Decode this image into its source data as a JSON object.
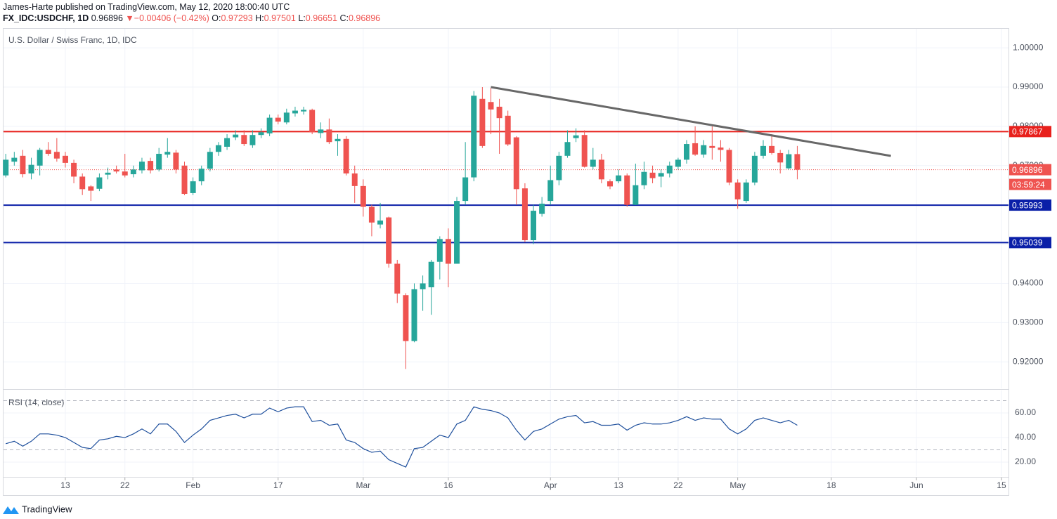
{
  "header": {
    "author_line": "James-Harte published on TradingView.com, May 12, 2020 18:00:40 UTC",
    "symbol": "FX_IDC:USDCHF, 1D",
    "last": "0.96896",
    "arrow": "▼",
    "change": "−0.00406 (−0.42%)",
    "ohlc": [
      {
        "label": "O:",
        "value": "0.97293"
      },
      {
        "label": "H:",
        "value": "0.97501"
      },
      {
        "label": "L:",
        "value": "0.96651"
      },
      {
        "label": "C:",
        "value": "0.96896"
      }
    ]
  },
  "footer": {
    "brand": "TradingView"
  },
  "chart_data": [
    {
      "type": "candlestick",
      "title": "U.S. Dollar / Swiss Franc, 1D, IDC",
      "x": [
        "2020-01-02",
        "2020-01-03",
        "2020-01-06",
        "2020-01-07",
        "2020-01-08",
        "2020-01-09",
        "2020-01-10",
        "2020-01-13",
        "2020-01-14",
        "2020-01-15",
        "2020-01-16",
        "2020-01-17",
        "2020-01-20",
        "2020-01-21",
        "2020-01-22",
        "2020-01-23",
        "2020-01-24",
        "2020-01-27",
        "2020-01-28",
        "2020-01-29",
        "2020-01-30",
        "2020-01-31",
        "2020-02-03",
        "2020-02-04",
        "2020-02-05",
        "2020-02-06",
        "2020-02-07",
        "2020-02-10",
        "2020-02-11",
        "2020-02-12",
        "2020-02-13",
        "2020-02-14",
        "2020-02-17",
        "2020-02-18",
        "2020-02-19",
        "2020-02-20",
        "2020-02-21",
        "2020-02-24",
        "2020-02-25",
        "2020-02-26",
        "2020-02-27",
        "2020-02-28",
        "2020-03-02",
        "2020-03-03",
        "2020-03-04",
        "2020-03-05",
        "2020-03-06",
        "2020-03-09",
        "2020-03-10",
        "2020-03-11",
        "2020-03-12",
        "2020-03-13",
        "2020-03-16",
        "2020-03-17",
        "2020-03-18",
        "2020-03-19",
        "2020-03-20",
        "2020-03-23",
        "2020-03-24",
        "2020-03-25",
        "2020-03-26",
        "2020-03-27",
        "2020-03-30",
        "2020-03-31",
        "2020-04-01",
        "2020-04-02",
        "2020-04-03",
        "2020-04-06",
        "2020-04-07",
        "2020-04-08",
        "2020-04-09",
        "2020-04-10",
        "2020-04-13",
        "2020-04-14",
        "2020-04-15",
        "2020-04-16",
        "2020-04-17",
        "2020-04-20",
        "2020-04-21",
        "2020-04-22",
        "2020-04-23",
        "2020-04-24",
        "2020-04-27",
        "2020-04-28",
        "2020-04-29",
        "2020-04-30",
        "2020-05-01",
        "2020-05-04",
        "2020-05-05",
        "2020-05-06",
        "2020-05-07",
        "2020-05-08",
        "2020-05-11",
        "2020-05-12"
      ],
      "open": [
        0.9675,
        0.971,
        0.9725,
        0.968,
        0.97,
        0.974,
        0.9735,
        0.9725,
        0.9707,
        0.9672,
        0.9647,
        0.9641,
        0.9677,
        0.969,
        0.9685,
        0.9678,
        0.9688,
        0.9712,
        0.969,
        0.9728,
        0.9733,
        0.97,
        0.963,
        0.966,
        0.9692,
        0.9735,
        0.9748,
        0.9772,
        0.9778,
        0.9752,
        0.9778,
        0.9782,
        0.9822,
        0.981,
        0.9833,
        0.9838,
        0.9842,
        0.9783,
        0.9792,
        0.9762,
        0.9768,
        0.968,
        0.9648,
        0.9595,
        0.955,
        0.9568,
        0.945,
        0.937,
        0.9253,
        0.9385,
        0.939,
        0.9455,
        0.9513,
        0.945,
        0.961,
        0.967,
        0.987,
        0.9862,
        0.985,
        0.9827,
        0.9772,
        0.9642,
        0.951,
        0.9577,
        0.961,
        0.9663,
        0.9725,
        0.977,
        0.9778,
        0.9697,
        0.9715,
        0.966,
        0.966,
        0.9675,
        0.96,
        0.965,
        0.9682,
        0.9672,
        0.968,
        0.9697,
        0.9715,
        0.9757,
        0.9728,
        0.975,
        0.9746,
        0.974,
        0.9657,
        0.961,
        0.9657,
        0.9725,
        0.975,
        0.9732,
        0.9693,
        0.97293
      ],
      "high": [
        0.973,
        0.9735,
        0.974,
        0.972,
        0.9745,
        0.976,
        0.977,
        0.9735,
        0.9715,
        0.968,
        0.965,
        0.968,
        0.9695,
        0.97,
        0.973,
        0.97,
        0.972,
        0.972,
        0.9745,
        0.977,
        0.974,
        0.971,
        0.967,
        0.97,
        0.9745,
        0.976,
        0.978,
        0.979,
        0.979,
        0.979,
        0.9795,
        0.983,
        0.983,
        0.9845,
        0.985,
        0.985,
        0.9845,
        0.981,
        0.982,
        0.978,
        0.9775,
        0.97,
        0.9665,
        0.96,
        0.9605,
        0.957,
        0.946,
        0.9375,
        0.94,
        0.942,
        0.946,
        0.952,
        0.954,
        0.962,
        0.976,
        0.989,
        0.99,
        0.9898,
        0.987,
        0.984,
        0.9775,
        0.9655,
        0.96,
        0.962,
        0.97,
        0.9735,
        0.979,
        0.9795,
        0.979,
        0.9745,
        0.973,
        0.9665,
        0.969,
        0.968,
        0.9705,
        0.971,
        0.97,
        0.969,
        0.971,
        0.972,
        0.9765,
        0.98,
        0.9765,
        0.98,
        0.9765,
        0.9745,
        0.9665,
        0.9665,
        0.9735,
        0.9765,
        0.978,
        0.974,
        0.974,
        0.97501
      ],
      "low": [
        0.967,
        0.97,
        0.967,
        0.9665,
        0.9675,
        0.9725,
        0.971,
        0.9695,
        0.9655,
        0.9625,
        0.961,
        0.9635,
        0.9665,
        0.968,
        0.967,
        0.967,
        0.968,
        0.968,
        0.9685,
        0.972,
        0.968,
        0.9625,
        0.9625,
        0.965,
        0.9685,
        0.9725,
        0.974,
        0.9765,
        0.975,
        0.9745,
        0.977,
        0.9775,
        0.9805,
        0.9805,
        0.9825,
        0.983,
        0.978,
        0.977,
        0.9755,
        0.9725,
        0.9675,
        0.9605,
        0.957,
        0.952,
        0.954,
        0.944,
        0.935,
        0.9182,
        0.925,
        0.933,
        0.932,
        0.941,
        0.939,
        0.945,
        0.96,
        0.966,
        0.9745,
        0.978,
        0.973,
        0.975,
        0.96,
        0.9505,
        0.95,
        0.957,
        0.96,
        0.965,
        0.972,
        0.976,
        0.9695,
        0.969,
        0.9655,
        0.964,
        0.9655,
        0.9595,
        0.96,
        0.964,
        0.9655,
        0.9645,
        0.967,
        0.969,
        0.9705,
        0.9725,
        0.972,
        0.9715,
        0.971,
        0.965,
        0.959,
        0.9605,
        0.965,
        0.9718,
        0.9728,
        0.968,
        0.969,
        0.96651
      ],
      "close": [
        0.9715,
        0.972,
        0.9678,
        0.9702,
        0.974,
        0.973,
        0.9718,
        0.9707,
        0.9672,
        0.964,
        0.9636,
        0.967,
        0.9682,
        0.9685,
        0.9675,
        0.969,
        0.971,
        0.9688,
        0.973,
        0.9735,
        0.969,
        0.9628,
        0.966,
        0.9692,
        0.9735,
        0.9752,
        0.977,
        0.9779,
        0.9755,
        0.9778,
        0.9785,
        0.9822,
        0.9812,
        0.9835,
        0.984,
        0.9842,
        0.9785,
        0.9792,
        0.976,
        0.9768,
        0.968,
        0.9648,
        0.9595,
        0.9555,
        0.956,
        0.945,
        0.9374,
        0.9253,
        0.9385,
        0.94,
        0.9455,
        0.9513,
        0.945,
        0.961,
        0.967,
        0.9878,
        0.975,
        0.9843,
        0.9821,
        0.9754,
        0.964,
        0.951,
        0.9585,
        0.9603,
        0.9663,
        0.9725,
        0.976,
        0.9777,
        0.9697,
        0.9715,
        0.9665,
        0.9647,
        0.9675,
        0.96,
        0.965,
        0.9684,
        0.9668,
        0.9681,
        0.97,
        0.9715,
        0.9755,
        0.9728,
        0.9752,
        0.9745,
        0.974,
        0.9657,
        0.9614,
        0.9657,
        0.9725,
        0.975,
        0.9732,
        0.9708,
        0.9729,
        0.96896
      ],
      "up_color": "#26a69a",
      "down_color": "#ef5350",
      "ylim": [
        0.91325,
        1.00503
      ],
      "yticks": [
        {
          "value": 0.92,
          "label": "0.92000"
        },
        {
          "value": 0.93,
          "label": "0.93000"
        },
        {
          "value": 0.94,
          "label": "0.94000"
        },
        {
          "value": 0.95,
          "label": "0.95000"
        },
        {
          "value": 0.96,
          "label": "0.96000"
        },
        {
          "value": 0.97,
          "label": "0.97000"
        },
        {
          "value": 0.98,
          "label": "0.98000"
        },
        {
          "value": 0.99,
          "label": "0.99000"
        },
        {
          "value": 1.0,
          "label": "1.00000"
        }
      ],
      "xticks": [
        {
          "value": "2020-01-13",
          "label": "13"
        },
        {
          "value": "2020-01-22",
          "label": "22"
        },
        {
          "value": "2020-02-03",
          "label": "Feb"
        },
        {
          "value": "2020-02-17",
          "label": "17"
        },
        {
          "value": "2020-03-02",
          "label": "Mar"
        },
        {
          "value": "2020-03-16",
          "label": "16"
        },
        {
          "value": "2020-04-01",
          "label": "Apr"
        },
        {
          "value": "2020-04-13",
          "label": "13"
        },
        {
          "value": "2020-04-22",
          "label": "22"
        },
        {
          "value": "2020-05-01",
          "label": "May"
        },
        {
          "value": "2020-05-18",
          "label": "18"
        },
        {
          "value": "2020-06-01",
          "label": "Jun"
        },
        {
          "value": "2020-06-15",
          "label": "15"
        }
      ],
      "grid": true,
      "hlines": [
        {
          "value": 0.97867,
          "color": "#e8201c"
        },
        {
          "value": 0.95993,
          "color": "#0a1fa8"
        },
        {
          "value": 0.95039,
          "color": "#0a1fa8"
        }
      ],
      "trendline": {
        "x": [
          "2020-03-23",
          "2020-05-27"
        ],
        "y": [
          0.99,
          0.97247
        ],
        "color": "#686868"
      },
      "last_price": {
        "value": 0.96896,
        "countdown": "03:59:24",
        "color": "#ef5350"
      }
    },
    {
      "type": "line",
      "title": "RSI (14, close)",
      "color": "#1e4f9c",
      "values": [
        35,
        37,
        33,
        37,
        43,
        43,
        42,
        40,
        36,
        32,
        31,
        38,
        39,
        41,
        40,
        43,
        47,
        43,
        51,
        51,
        45,
        36,
        42,
        47,
        54,
        56,
        58,
        59,
        56,
        59,
        59,
        64,
        61,
        64,
        65,
        65,
        53,
        54,
        50,
        51,
        38,
        36,
        31,
        28,
        29,
        22,
        19,
        16,
        31,
        32,
        37,
        42,
        40,
        51,
        54,
        65,
        63,
        62,
        60,
        56,
        46,
        38,
        45,
        47,
        51,
        55,
        57,
        58,
        52,
        53,
        50,
        50,
        51,
        46,
        50,
        52,
        51,
        51,
        52,
        54,
        57,
        54,
        56,
        55,
        55,
        47,
        43,
        47,
        54,
        56,
        54,
        52,
        54,
        50
      ],
      "ylim": [
        8.6,
        78.3
      ],
      "yticks": [
        {
          "value": 20,
          "label": "20.00"
        },
        {
          "value": 40,
          "label": "40.00"
        },
        {
          "value": 60,
          "label": "60.00"
        }
      ],
      "bands": [
        70,
        30
      ]
    }
  ]
}
